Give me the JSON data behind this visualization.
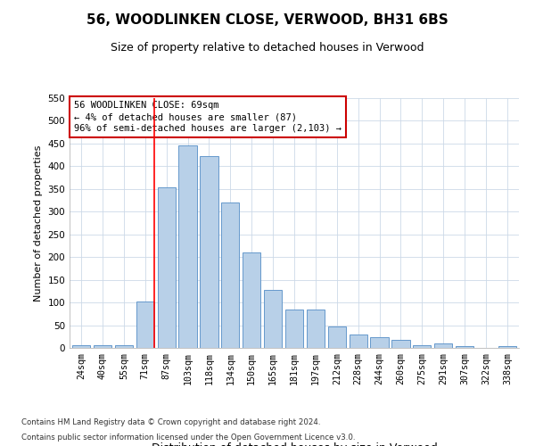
{
  "title": "56, WOODLINKEN CLOSE, VERWOOD, BH31 6BS",
  "subtitle": "Size of property relative to detached houses in Verwood",
  "xlabel": "Distribution of detached houses by size in Verwood",
  "ylabel": "Number of detached properties",
  "categories": [
    "24sqm",
    "40sqm",
    "55sqm",
    "71sqm",
    "87sqm",
    "103sqm",
    "118sqm",
    "134sqm",
    "150sqm",
    "165sqm",
    "181sqm",
    "197sqm",
    "212sqm",
    "228sqm",
    "244sqm",
    "260sqm",
    "275sqm",
    "291sqm",
    "307sqm",
    "322sqm",
    "338sqm"
  ],
  "values": [
    5,
    5,
    5,
    103,
    353,
    445,
    422,
    320,
    210,
    128,
    85,
    85,
    48,
    30,
    24,
    18,
    5,
    9,
    3,
    0,
    3
  ],
  "bar_color": "#b8d0e8",
  "bar_edge_color": "#6699cc",
  "ylim": [
    0,
    550
  ],
  "yticks": [
    0,
    50,
    100,
    150,
    200,
    250,
    300,
    350,
    400,
    450,
    500,
    550
  ],
  "red_line_index": 3,
  "annotation_text": "56 WOODLINKEN CLOSE: 69sqm\n← 4% of detached houses are smaller (87)\n96% of semi-detached houses are larger (2,103) →",
  "annotation_box_color": "#ffffff",
  "annotation_box_edge": "#cc0000",
  "footnote1": "Contains HM Land Registry data © Crown copyright and database right 2024.",
  "footnote2": "Contains public sector information licensed under the Open Government Licence v3.0.",
  "background_color": "#ffffff",
  "grid_color": "#ccd9e8",
  "title_fontsize": 11,
  "subtitle_fontsize": 9,
  "ylabel_fontsize": 8,
  "xlabel_fontsize": 9
}
